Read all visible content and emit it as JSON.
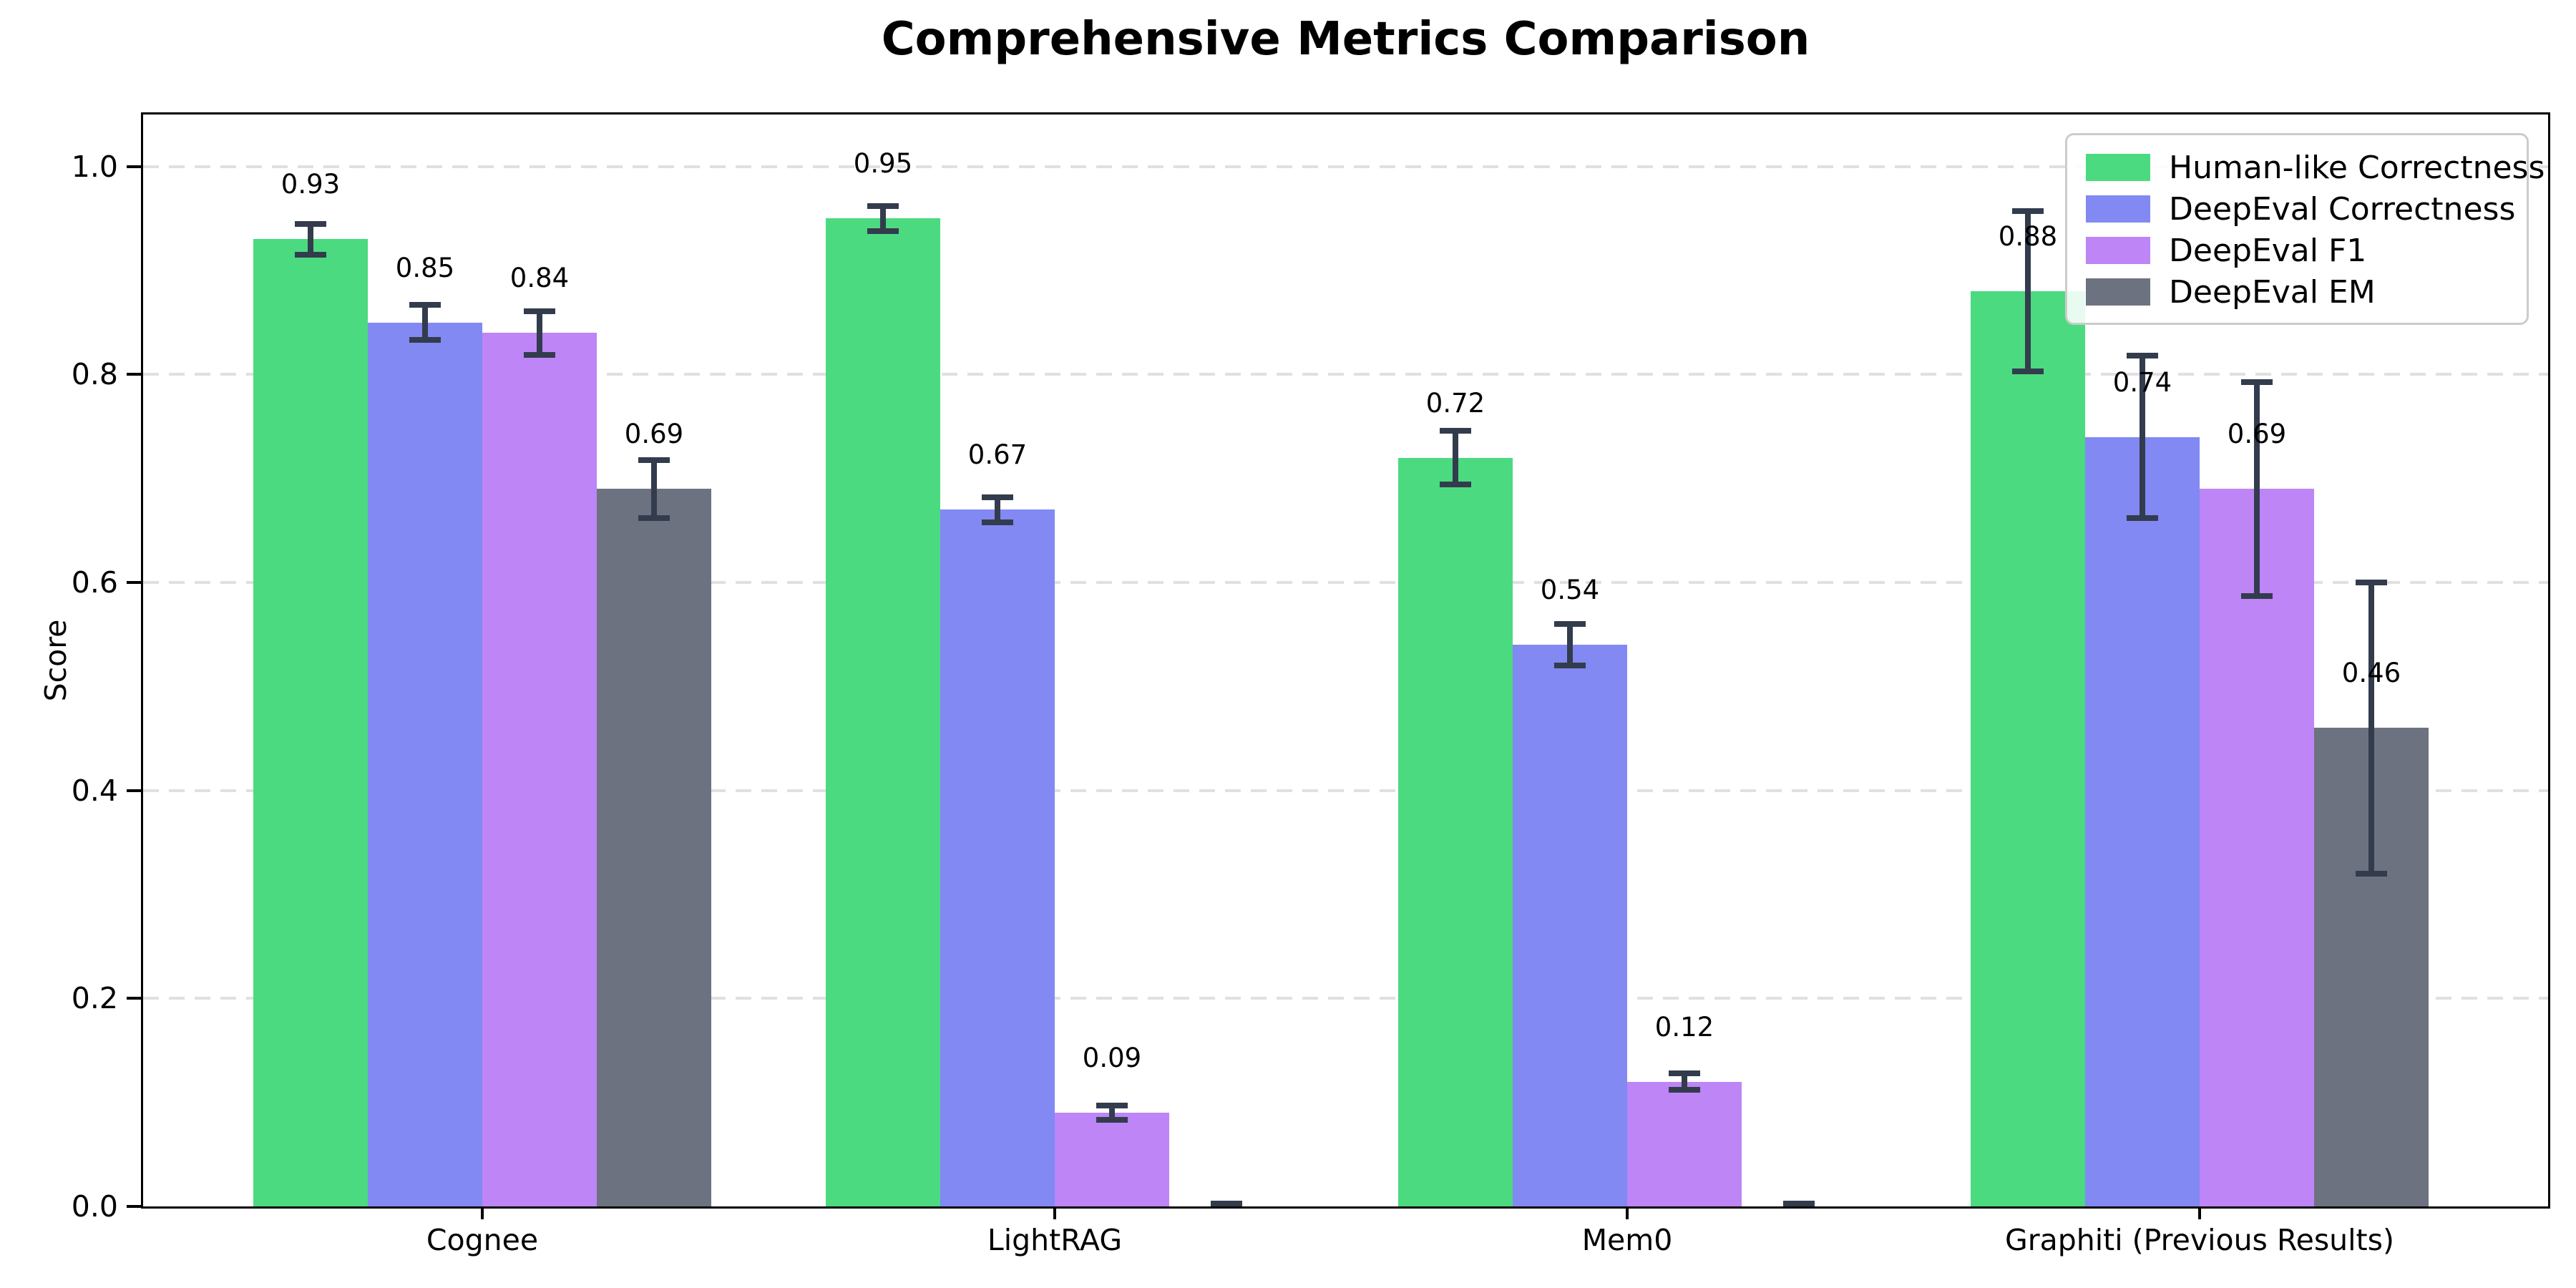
{
  "chart_data": {
    "type": "bar",
    "title": "Comprehensive Metrics Comparison",
    "xlabel": "",
    "ylabel": "Score",
    "categories": [
      "Cognee",
      "LightRAG",
      "Mem0",
      "Graphiti (Previous Results)"
    ],
    "series": [
      {
        "name": "Human-like Correctness",
        "color": "#4bda80",
        "values": [
          0.93,
          0.95,
          0.72,
          0.88
        ],
        "errors": [
          0.015,
          0.012,
          0.026,
          0.077
        ]
      },
      {
        "name": "DeepEval Correctness",
        "color": "#8289f3",
        "values": [
          0.85,
          0.67,
          0.54,
          0.74
        ],
        "errors": [
          0.017,
          0.012,
          0.02,
          0.078
        ]
      },
      {
        "name": "DeepEval F1",
        "color": "#bd85f6",
        "values": [
          0.84,
          0.09,
          0.12,
          0.69
        ],
        "errors": [
          0.021,
          0.007,
          0.008,
          0.103
        ]
      },
      {
        "name": "DeepEval EM",
        "color": "#6c7280",
        "values": [
          0.69,
          0.0,
          0.0,
          0.46
        ],
        "errors": [
          0.028,
          0.003,
          0.003,
          0.14
        ]
      }
    ],
    "bar_value_labels": [
      [
        "0.93",
        "0.95",
        "0.72",
        "0.88"
      ],
      [
        "0.85",
        "0.67",
        "0.54",
        "0.74"
      ],
      [
        "0.84",
        "0.09",
        "0.12",
        "0.69"
      ],
      [
        "0.69",
        "",
        "",
        "0.46"
      ]
    ],
    "yticks": [
      0.0,
      0.2,
      0.4,
      0.6,
      0.8,
      1.0
    ],
    "ytick_labels": [
      "0.0",
      "0.2",
      "0.4",
      "0.6",
      "0.8",
      "1.0"
    ],
    "ylim": [
      0,
      1.05
    ],
    "grid": "horizontal-dashed",
    "grid_color": "#e0e0e0",
    "error_bar_color": "#333c4d",
    "axis_color": "#000000",
    "legend_position": "upper-right",
    "legend_border_color": "#cccccc"
  }
}
